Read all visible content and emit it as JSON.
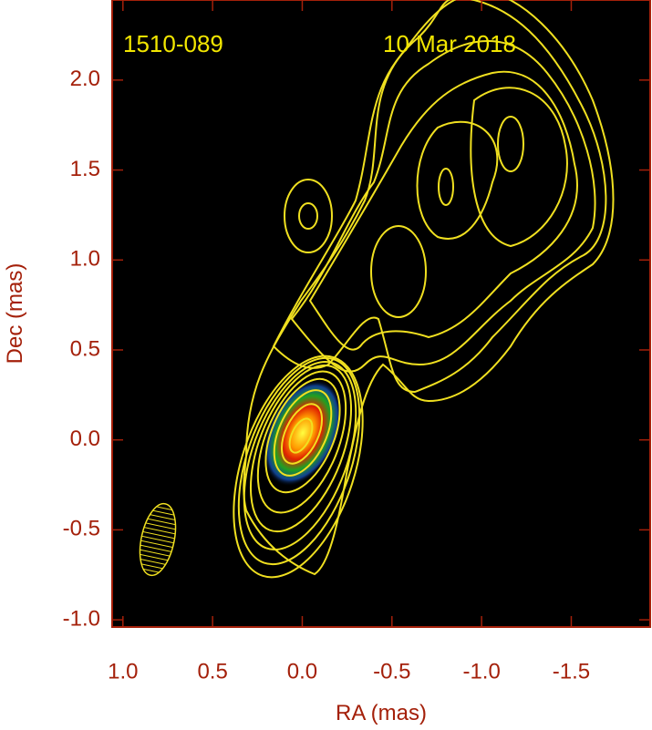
{
  "chart_data": {
    "type": "contour",
    "source_label": "1510-089",
    "date_label": "10 Mar 2018",
    "x_label": "RA (mas)",
    "y_label": "Dec (mas)",
    "xlim": [
      1.06,
      -1.94
    ],
    "ylim": [
      -1.04,
      2.445
    ],
    "xticks": [
      {
        "value": 1,
        "label": "1.0"
      },
      0.5,
      {
        "value": 0,
        "label": "0.0"
      },
      -0.5,
      {
        "value": -1,
        "label": "-1.0"
      },
      -1.5
    ],
    "yticks": [
      {
        "value": 2,
        "label": "2.0"
      },
      1.5,
      {
        "value": 1,
        "label": "1.0"
      },
      0.5,
      {
        "value": 0,
        "label": "0.0"
      },
      -0.5,
      {
        "value": -1,
        "label": "-1.0"
      }
    ],
    "color": "#a4200a"
  }
}
